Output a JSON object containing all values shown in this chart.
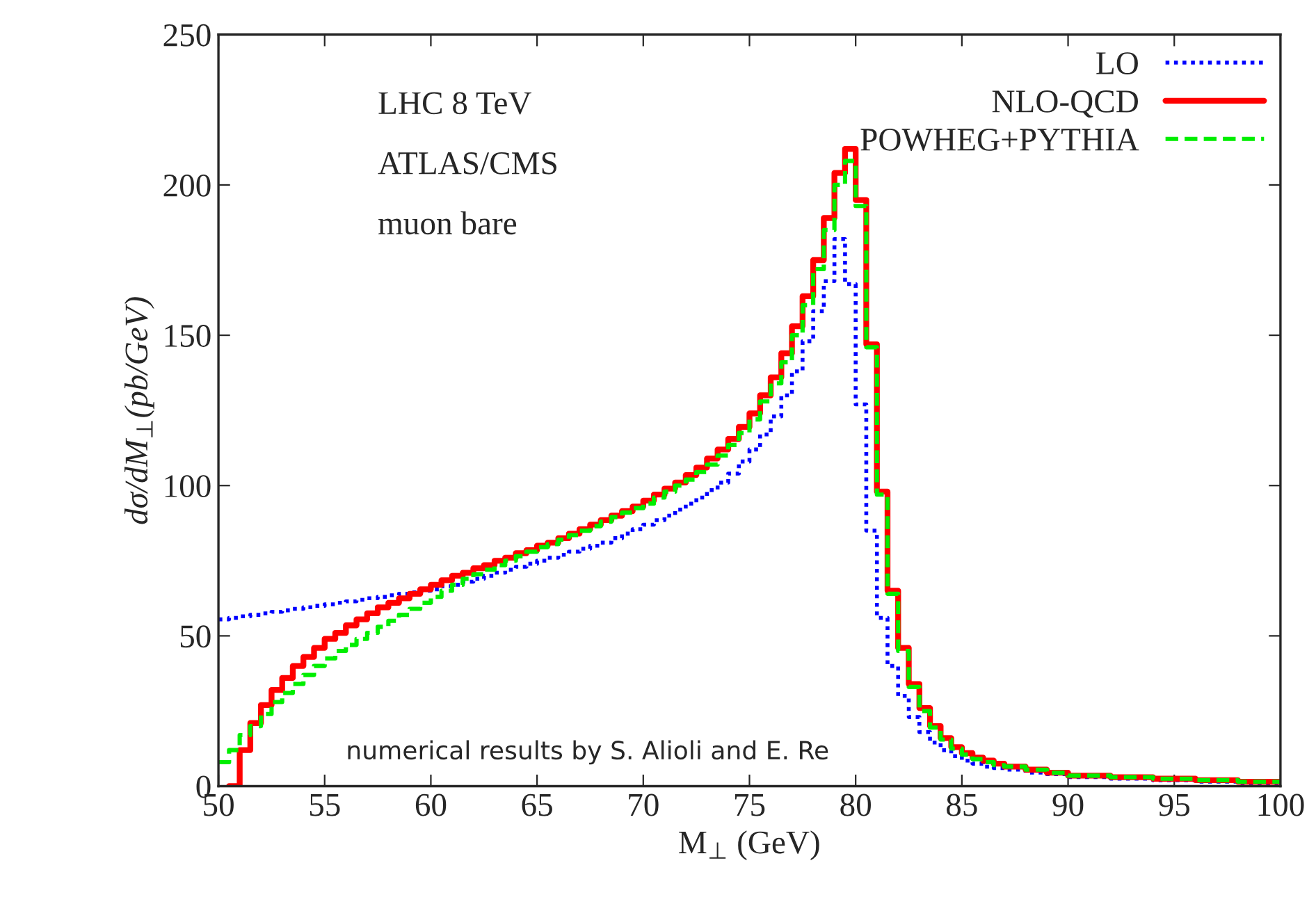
{
  "chart_data": {
    "type": "step",
    "xlabel": "M$_{⊥}$ (GeV)",
    "ylabel": "dσ/dM$_{⊥}$(pb/GeV)",
    "annotations": [
      "LHC 8 TeV",
      "ATLAS/CMS",
      "muon bare",
      "numerical results by S. Alioli and E. Re"
    ],
    "x": [
      50,
      50.5,
      51,
      51.5,
      52,
      52.5,
      53,
      53.5,
      54,
      54.5,
      55,
      55.5,
      56,
      56.5,
      57,
      57.5,
      58,
      58.5,
      59,
      59.5,
      60,
      60.5,
      61,
      61.5,
      62,
      62.5,
      63,
      63.5,
      64,
      64.5,
      65,
      65.5,
      66,
      66.5,
      67,
      67.5,
      68,
      68.5,
      69,
      69.5,
      70,
      70.5,
      71,
      71.5,
      72,
      72.5,
      73,
      73.5,
      74,
      74.5,
      75,
      75.5,
      76,
      76.5,
      77,
      77.5,
      78,
      78.5,
      79,
      79.5,
      80,
      80.5,
      81,
      81.5,
      82,
      82.5,
      83,
      83.5,
      84,
      84.5,
      85,
      85.5,
      86,
      86.5,
      87,
      88,
      89,
      90,
      92,
      94,
      96,
      98,
      100
    ],
    "series": [
      {
        "name": "LO",
        "color": "#0000ff",
        "line_style": "dotted",
        "values": [
          55.5,
          56,
          56.5,
          57,
          57.5,
          58,
          58.5,
          59,
          59.5,
          60,
          60.5,
          61,
          61.5,
          62,
          62.5,
          63,
          63.5,
          64,
          64.5,
          65,
          65.5,
          66.5,
          67,
          68,
          69,
          70,
          71,
          72,
          73,
          74,
          75,
          76,
          77,
          78,
          79,
          80,
          81,
          82.5,
          84,
          85.5,
          87,
          88.5,
          90,
          92,
          94,
          96,
          98.5,
          101,
          104,
          108,
          112,
          117,
          123,
          130,
          138,
          148,
          158,
          168,
          182,
          167,
          127,
          85,
          56,
          40,
          30,
          23,
          18,
          14.5,
          12,
          10,
          8.5,
          7.5,
          6.5,
          6,
          5.5,
          4.5,
          4,
          3,
          2.5,
          2,
          1.5,
          1,
          1
        ]
      },
      {
        "name": "NLO-QCD",
        "color": "#ff0000",
        "line_style": "solid",
        "values": [
          null,
          0,
          12,
          21,
          27,
          32,
          36,
          40,
          43,
          46,
          49,
          51,
          53.5,
          55.5,
          57.5,
          59.5,
          61,
          62.5,
          64,
          65.5,
          67,
          68.5,
          70,
          71,
          72.5,
          73.5,
          75,
          76,
          77.5,
          78.5,
          80,
          81,
          82.5,
          84,
          85.5,
          87,
          88.5,
          90,
          91.5,
          93,
          95,
          97,
          99,
          101,
          103.5,
          106,
          109,
          112,
          115.5,
          119.5,
          124,
          130,
          136,
          144,
          153,
          163,
          175,
          189,
          204,
          212,
          195,
          147,
          98,
          65,
          46,
          34,
          26,
          20,
          16,
          13,
          11,
          9.5,
          8.5,
          7.5,
          6.5,
          5.5,
          4.5,
          3.5,
          3,
          2.5,
          2,
          1.5,
          1.5
        ]
      },
      {
        "name": "POWHEG+PYTHIA",
        "color": "#00ee00",
        "line_style": "dashed",
        "values": [
          8,
          12,
          17,
          20,
          24,
          28,
          31,
          34,
          37,
          40,
          42.5,
          45,
          47,
          49,
          51,
          53,
          55,
          57,
          59,
          61,
          63,
          65,
          67,
          69,
          70.5,
          72,
          73.5,
          75,
          76.5,
          78,
          79.5,
          80.5,
          82,
          83.5,
          85,
          86.5,
          88,
          89.5,
          91,
          92.5,
          94,
          96,
          98,
          100,
          102,
          104.5,
          107,
          110,
          113.5,
          117.5,
          122,
          128,
          134,
          141,
          150,
          160,
          172,
          185,
          200,
          208,
          193,
          146,
          97,
          64,
          45,
          33,
          25,
          19.5,
          15.5,
          12.5,
          10.5,
          9,
          8,
          7,
          6.5,
          5.5,
          4.5,
          3.5,
          3,
          2.5,
          2,
          1.5,
          1.5
        ]
      }
    ],
    "xlim": [
      50,
      100
    ],
    "xticks": [
      50,
      55,
      60,
      65,
      70,
      75,
      80,
      85,
      90,
      95,
      100
    ],
    "ylim": [
      0,
      250
    ],
    "yticks": [
      0,
      50,
      100,
      150,
      200,
      250
    ],
    "legend": "top right"
  }
}
